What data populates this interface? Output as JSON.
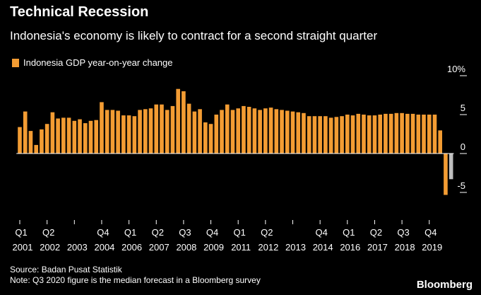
{
  "header": {
    "title": "Technical Recession",
    "subtitle": "Indonesia's economy is likely to contract for a second straight quarter"
  },
  "legend": {
    "label": "Indonesia GDP year-on-year change"
  },
  "footer": {
    "source": "Source: Badan Pusat Statistik",
    "note": "Note: Q3 2020 figure is the median forecast in a Bloomberg survey"
  },
  "brand": "Bloomberg",
  "colors": {
    "bar": "#F39C33",
    "forecast": "#BEBEBE",
    "zero_line": "#FFFFFF",
    "background": "#000000"
  },
  "chart_data": {
    "type": "bar",
    "title": "Technical Recession",
    "subtitle": "Indonesia's economy is likely to contract for a second straight quarter",
    "legend": "Indonesia GDP year-on-year change",
    "ylim": [
      -6,
      10
    ],
    "y_ticks": [
      {
        "value": 10,
        "label": "10%"
      },
      {
        "value": 5,
        "label": "5"
      },
      {
        "value": 0,
        "label": "0"
      },
      {
        "value": -5,
        "label": "-5"
      }
    ],
    "x_labels": [
      {
        "index": 0,
        "quarter": "Q1",
        "year": "2001"
      },
      {
        "index": 5,
        "quarter": "Q2",
        "year": "2002"
      },
      {
        "index": 10,
        "quarter": "",
        "year": "2003"
      },
      {
        "index": 15,
        "quarter": "Q4",
        "year": "2004"
      },
      {
        "index": 20,
        "quarter": "Q1",
        "year": "2006"
      },
      {
        "index": 25,
        "quarter": "Q2",
        "year": "2007"
      },
      {
        "index": 30,
        "quarter": "Q3",
        "year": "2008"
      },
      {
        "index": 35,
        "quarter": "Q4",
        "year": "2009"
      },
      {
        "index": 40,
        "quarter": "Q1",
        "year": "2011"
      },
      {
        "index": 45,
        "quarter": "Q2",
        "year": "2012"
      },
      {
        "index": 50,
        "quarter": "",
        "year": "2013"
      },
      {
        "index": 55,
        "quarter": "Q4",
        "year": "2014"
      },
      {
        "index": 60,
        "quarter": "Q1",
        "year": "2016"
      },
      {
        "index": 65,
        "quarter": "Q2",
        "year": "2017"
      },
      {
        "index": 70,
        "quarter": "Q3",
        "year": "2018"
      },
      {
        "index": 75,
        "quarter": "Q4",
        "year": "2019"
      }
    ],
    "series": [
      {
        "values": [
          3.4,
          5.4,
          2.9,
          1.1,
          3.1,
          3.8,
          5.3,
          4.5,
          4.6,
          4.6,
          4.2,
          4.4,
          3.9,
          4.2,
          4.3,
          6.6,
          5.6,
          5.6,
          5.5,
          4.9,
          4.9,
          4.8,
          5.6,
          5.7,
          5.8,
          6.3,
          6.3,
          5.6,
          6.1,
          8.3,
          8.0,
          6.4,
          5.4,
          5.7,
          4.0,
          3.8,
          5.0,
          5.6,
          6.3,
          5.6,
          5.8,
          6.1,
          6.0,
          5.8,
          5.6,
          5.8,
          5.9,
          5.7,
          5.6,
          5.5,
          5.4,
          5.3,
          5.2,
          4.8,
          4.8,
          4.8,
          4.8,
          4.6,
          4.7,
          4.8,
          5.0,
          4.9,
          5.1,
          5.0,
          4.9,
          4.9,
          5.0,
          5.1,
          5.1,
          5.2,
          5.2,
          5.1,
          5.1,
          5.0,
          5.0,
          5.0,
          5.0,
          2.97,
          -5.32
        ]
      },
      {
        "values": [
          -3.3
        ]
      }
    ]
  }
}
